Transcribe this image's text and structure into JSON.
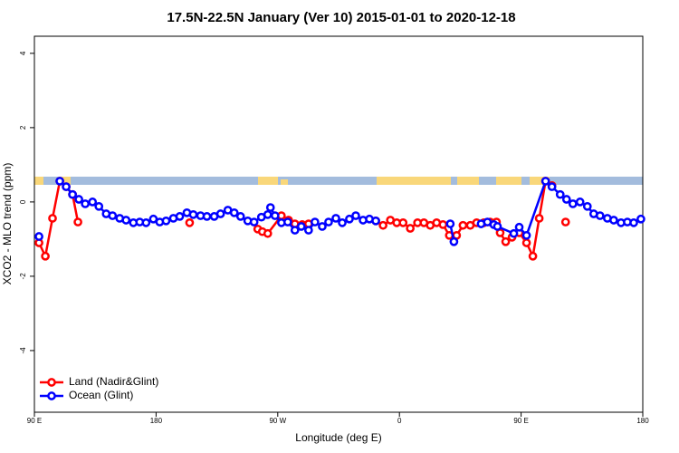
{
  "chart_data": {
    "type": "line",
    "title": "17.5N-22.5N January (Ver 10)   2015-01-01 to 2020-12-18",
    "x_label": "Longitude (deg E)",
    "y_label": "XCO2 - MLO trend (ppm)",
    "xlim": [
      90,
      540
    ],
    "xticks": [
      {
        "value": 90,
        "label": "90 E"
      },
      {
        "value": 180,
        "label": "180"
      },
      {
        "value": 270,
        "label": "90 W"
      },
      {
        "value": 360,
        "label": "0"
      },
      {
        "value": 450,
        "label": "90 E"
      },
      {
        "value": 540,
        "label": "180"
      }
    ],
    "ylim": [
      -5.66,
      4.46
    ],
    "yticks": [
      -4,
      -2,
      0,
      2,
      4
    ],
    "legend": "bottom-left",
    "series": [
      {
        "name": "Land (Nadir&Glint)",
        "color": "#ff0000",
        "x": [
          93.4,
          98.1,
          103.4,
          108.8,
          113.5,
          118.2,
          122.2,
          150,
          204.8,
          250,
          255.2,
          258.6,
          262.6,
          272.7,
          278.0,
          282.7,
          288.1,
          292.8,
          320,
          342.5,
          347.9,
          353.3,
          358.0,
          362.7,
          368.0,
          373.4,
          378.1,
          382.8,
          387.5,
          392.2,
          396.9,
          402.3,
          407.0,
          412.4,
          417.1,
          422.4,
          427.1,
          431.8,
          434.5,
          438.6,
          443.3,
          448.6,
          454.0,
          458.7,
          463.4,
          468.1,
          472.8,
          478,
          482.9
        ],
        "values": [
          -1.1,
          -1.46,
          -0.44,
          0.56,
          0.41,
          0.2,
          -0.54,
          null,
          -0.56,
          null,
          -0.73,
          -0.8,
          -0.85,
          -0.37,
          -0.49,
          -0.59,
          -0.61,
          -0.59,
          null,
          -0.51,
          -0.63,
          -0.49,
          -0.56,
          -0.56,
          -0.71,
          -0.56,
          -0.56,
          -0.63,
          -0.56,
          -0.61,
          -0.9,
          -0.9,
          -0.63,
          -0.63,
          -0.56,
          -0.56,
          -0.54,
          -0.54,
          -0.83,
          -1.07,
          -0.95,
          -0.83,
          -1.1,
          -1.46,
          -0.44,
          0.56,
          0.44,
          null,
          -0.54
        ]
      },
      {
        "name": "Ocean (Glint)",
        "color": "#0000ff",
        "x": [
          93.4,
          100,
          108.8,
          113.5,
          118.2,
          122.9,
          127.6,
          133.0,
          137.7,
          143.1,
          147.8,
          153.1,
          157.8,
          163.2,
          167.9,
          172.6,
          178.0,
          182.7,
          187.4,
          192.8,
          197.5,
          202.8,
          207.5,
          212.9,
          217.6,
          223.0,
          227.7,
          233.1,
          237.8,
          242.5,
          247.8,
          252.5,
          257.9,
          262.6,
          264.6,
          268.0,
          272.7,
          277.4,
          282.7,
          287.4,
          292.8,
          297.5,
          302.9,
          307.6,
          313.0,
          317.7,
          323.0,
          327.7,
          333.1,
          337.8,
          342.5,
          370,
          397.6,
          400.3,
          410,
          420.4,
          425.1,
          429.8,
          432.5,
          444.6,
          448.6,
          454.0,
          468.1,
          472.8,
          478.9,
          483.6,
          488.3,
          493.6,
          499.0,
          503.7,
          508.4,
          513.8,
          518.5,
          523.9,
          528.6,
          533.3,
          538.6
        ],
        "values": [
          -0.93,
          null,
          0.56,
          0.41,
          0.2,
          0.07,
          -0.05,
          0.0,
          -0.12,
          -0.32,
          -0.37,
          -0.44,
          -0.49,
          -0.56,
          -0.54,
          -0.56,
          -0.46,
          -0.54,
          -0.51,
          -0.44,
          -0.39,
          -0.29,
          -0.34,
          -0.37,
          -0.39,
          -0.39,
          -0.32,
          -0.22,
          -0.29,
          -0.39,
          -0.51,
          -0.54,
          -0.41,
          -0.34,
          -0.15,
          -0.37,
          -0.56,
          -0.54,
          -0.76,
          -0.66,
          -0.76,
          -0.54,
          -0.66,
          -0.54,
          -0.44,
          -0.56,
          -0.46,
          -0.37,
          -0.49,
          -0.46,
          -0.51,
          null,
          -0.59,
          -1.07,
          null,
          -0.59,
          -0.54,
          -0.61,
          -0.66,
          -0.85,
          -0.68,
          -0.9,
          0.56,
          0.41,
          0.2,
          0.07,
          -0.05,
          0.0,
          -0.12,
          -0.32,
          -0.37,
          -0.44,
          -0.49,
          -0.56,
          -0.54,
          -0.56,
          -0.46
        ]
      }
    ]
  }
}
